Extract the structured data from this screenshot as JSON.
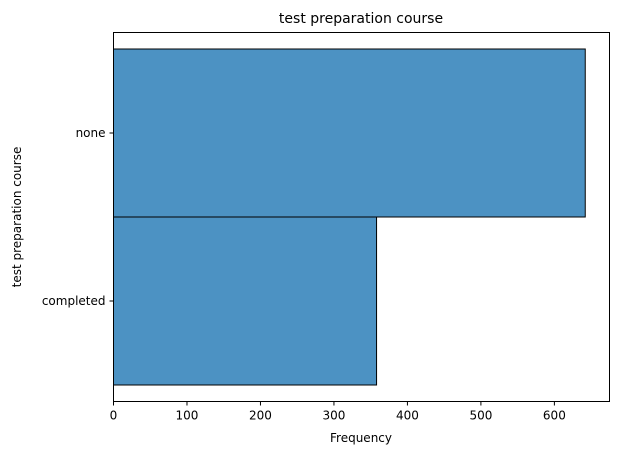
{
  "chart_data": {
    "type": "bar",
    "orientation": "horizontal",
    "title": "test preparation course",
    "xlabel": "Frequency",
    "ylabel": "test preparation course",
    "categories": [
      "none",
      "completed"
    ],
    "values": [
      642,
      358
    ],
    "xlim": [
      0,
      675
    ],
    "xticks": [
      0,
      100,
      200,
      300,
      400,
      500,
      600
    ],
    "grid": false,
    "legend": "none",
    "bar_color": "#4c92c3",
    "edge_color": "#000000"
  }
}
